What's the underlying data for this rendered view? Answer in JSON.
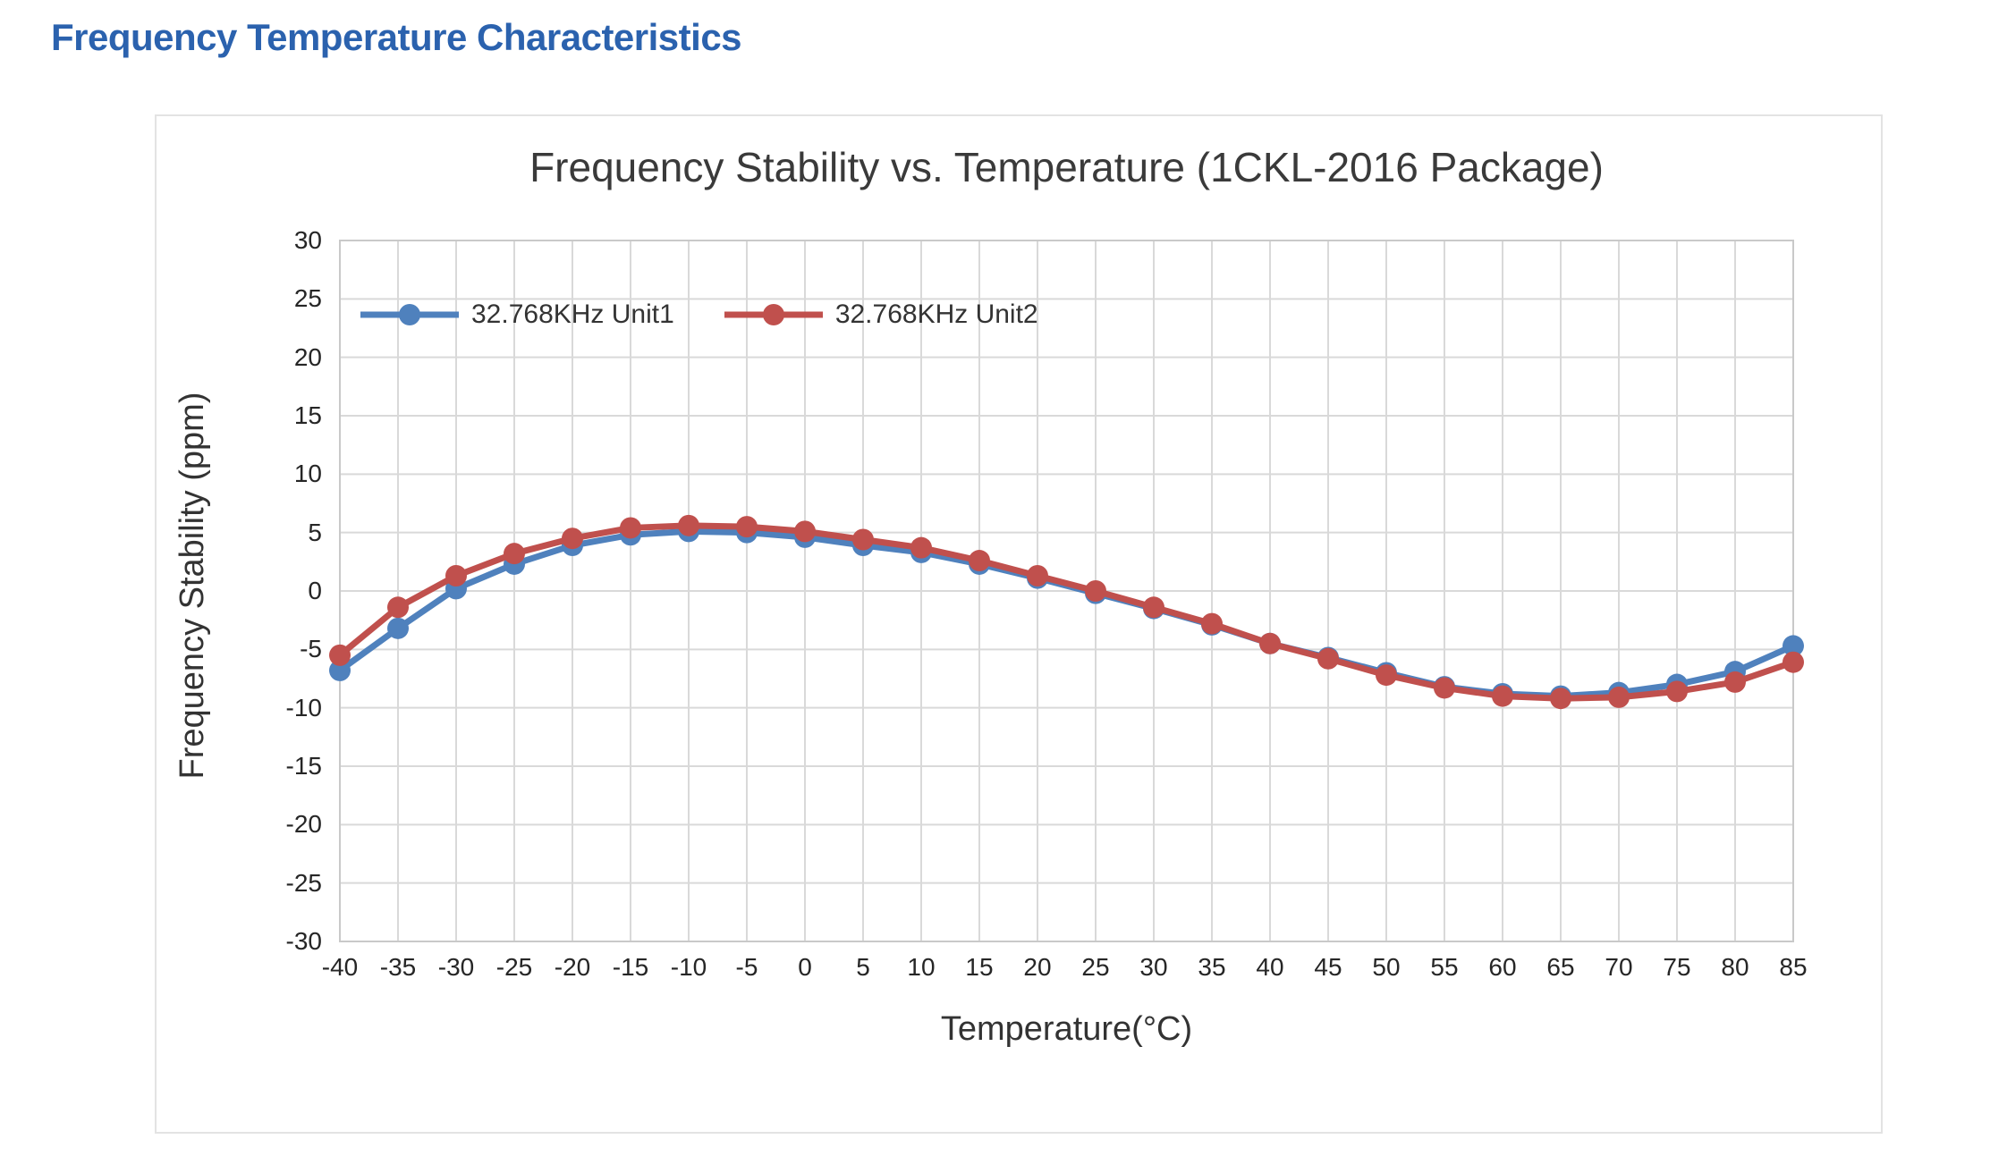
{
  "page": {
    "heading": "Frequency Temperature Characteristics"
  },
  "chart_data": {
    "type": "line",
    "title": "Frequency Stability vs. Temperature (1CKL-2016 Package)",
    "xlabel": "Temperature(°C)",
    "ylabel": "Frequency Stability (ppm)",
    "x": [
      -40,
      -35,
      -30,
      -25,
      -20,
      -15,
      -10,
      -5,
      0,
      5,
      10,
      15,
      20,
      25,
      30,
      35,
      40,
      45,
      50,
      55,
      60,
      65,
      70,
      75,
      80,
      85
    ],
    "series": [
      {
        "name": "32.768KHz Unit1",
        "color": "#4f81bd",
        "values": [
          -6.8,
          -3.2,
          0.2,
          2.3,
          3.9,
          4.8,
          5.1,
          5.0,
          4.6,
          3.9,
          3.3,
          2.3,
          1.1,
          -0.2,
          -1.5,
          -2.9,
          -4.5,
          -5.7,
          -7.0,
          -8.2,
          -8.8,
          -9.0,
          -8.7,
          -8.0,
          -6.9,
          -4.7
        ]
      },
      {
        "name": "32.768KHz Unit2",
        "color": "#c0504d",
        "values": [
          -5.5,
          -1.4,
          1.3,
          3.2,
          4.5,
          5.4,
          5.6,
          5.5,
          5.1,
          4.4,
          3.7,
          2.6,
          1.3,
          0.0,
          -1.4,
          -2.8,
          -4.5,
          -5.8,
          -7.2,
          -8.3,
          -9.0,
          -9.2,
          -9.1,
          -8.6,
          -7.8,
          -6.1
        ]
      }
    ],
    "xlim": [
      -40,
      85
    ],
    "ylim": [
      -30,
      30
    ],
    "x_ticks": [
      -40,
      -35,
      -30,
      -25,
      -20,
      -15,
      -10,
      -5,
      0,
      5,
      10,
      15,
      20,
      25,
      30,
      35,
      40,
      45,
      50,
      55,
      60,
      65,
      70,
      75,
      80,
      85
    ],
    "y_ticks": [
      30,
      25,
      20,
      15,
      10,
      5,
      0,
      -5,
      -10,
      -15,
      -20,
      -25,
      -30
    ],
    "grid": true,
    "legend_position": "top-left-inside"
  },
  "colors": {
    "heading_text": "#2b62ae",
    "chart_title_text": "#3a3a3a",
    "axis_title_text": "#333333",
    "tick_text": "#262626",
    "legend_text": "#333333",
    "gridline": "#d9d9d9",
    "plot_border": "#c9c9c9",
    "background": "#ffffff"
  }
}
